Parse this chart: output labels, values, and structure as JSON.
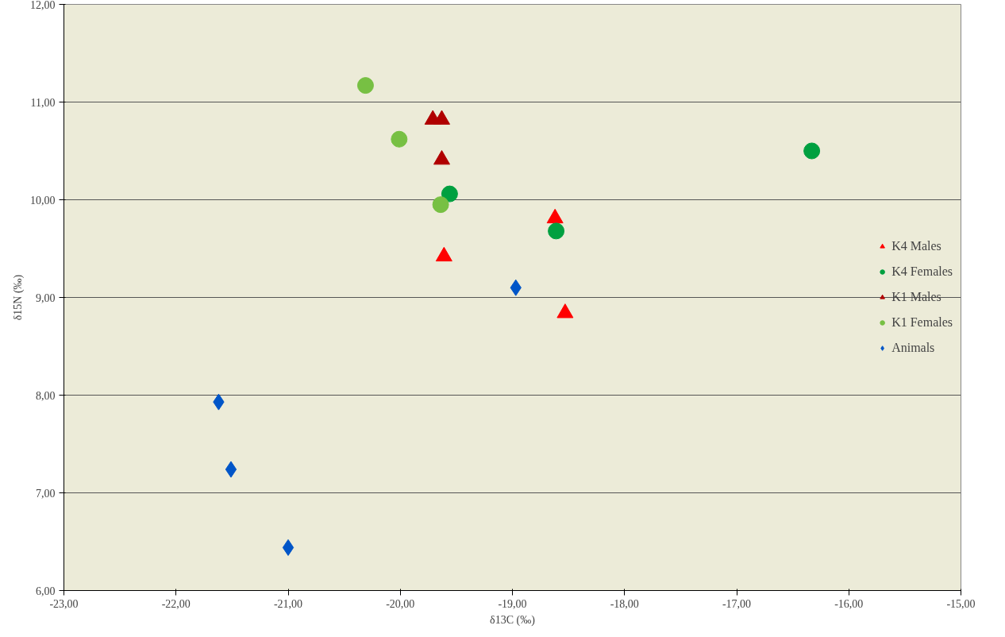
{
  "chart_data": {
    "type": "scatter",
    "xlabel": "δ13C (‰)",
    "ylabel": "δ15N (‰)",
    "xlim": [
      -23,
      -15
    ],
    "ylim": [
      6,
      12
    ],
    "xticks": [
      {
        "value": -23,
        "label": "-23,00"
      },
      {
        "value": -22,
        "label": "-22,00"
      },
      {
        "value": -21,
        "label": "-21,00"
      },
      {
        "value": -20,
        "label": "-20,00"
      },
      {
        "value": -19,
        "label": "-19,00"
      },
      {
        "value": -18,
        "label": "-18,00"
      },
      {
        "value": -17,
        "label": "-17,00"
      },
      {
        "value": -16,
        "label": "-16,00"
      },
      {
        "value": -15,
        "label": "-15,00"
      }
    ],
    "yticks": [
      {
        "value": 6,
        "label": "6,00"
      },
      {
        "value": 7,
        "label": "7,00"
      },
      {
        "value": 8,
        "label": "8,00"
      },
      {
        "value": 9,
        "label": "9,00"
      },
      {
        "value": 10,
        "label": "10,00"
      },
      {
        "value": 11,
        "label": "11,00"
      },
      {
        "value": 12,
        "label": "12,00"
      }
    ],
    "grid": "y",
    "legend": "right",
    "series": [
      {
        "name": "K4 Males",
        "color": "#ff0000",
        "marker": "triangle",
        "x": [
          -18.62,
          -19.61,
          -18.53
        ],
        "values": [
          9.81,
          9.42,
          8.84
        ]
      },
      {
        "name": "K4 Females",
        "color": "#00a040",
        "marker": "circle",
        "x": [
          -19.56,
          -18.61,
          -16.33
        ],
        "values": [
          10.06,
          9.68,
          10.5
        ]
      },
      {
        "name": "K1 Males",
        "color": "#b00000",
        "marker": "triangle",
        "x": [
          -19.71,
          -19.63,
          -19.63
        ],
        "values": [
          10.82,
          10.82,
          10.41
        ]
      },
      {
        "name": "K1 Females",
        "color": "#77c043",
        "marker": "circle",
        "x": [
          -20.31,
          -20.01,
          -19.64
        ],
        "values": [
          11.17,
          10.62,
          9.95
        ]
      },
      {
        "name": "Animals",
        "color": "#0055c8",
        "marker": "diamond",
        "x": [
          -21.62,
          -21.51,
          -21.0,
          -18.97
        ],
        "values": [
          7.93,
          7.24,
          6.44,
          9.1
        ]
      }
    ]
  }
}
